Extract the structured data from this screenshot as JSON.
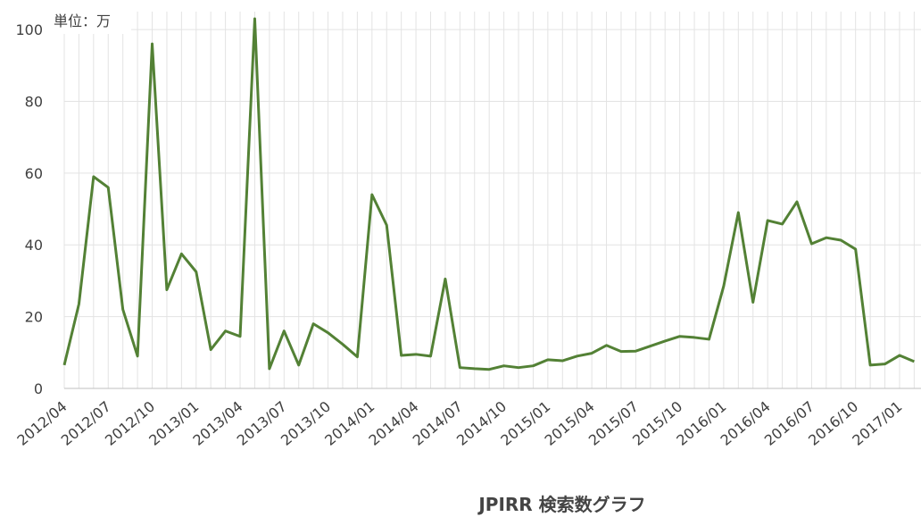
{
  "chart_data": {
    "type": "line",
    "title": "JPIRR 検索数グラフ",
    "annotation": "単位：万",
    "categories": [
      "2012/04",
      null,
      null,
      "2012/07",
      null,
      null,
      "2012/10",
      null,
      null,
      "2013/01",
      null,
      null,
      "2013/04",
      null,
      null,
      "2013/07",
      null,
      null,
      "2013/10",
      null,
      null,
      "2014/01",
      null,
      null,
      "2014/04",
      null,
      null,
      "2014/07",
      null,
      null,
      "2014/10",
      null,
      null,
      "2015/01",
      null,
      null,
      "2015/04",
      null,
      null,
      "2015/07",
      null,
      null,
      "2015/10",
      null,
      null,
      "2016/01",
      null,
      null,
      "2016/04",
      null,
      null,
      "2016/07",
      null,
      null,
      "2016/10",
      null,
      null,
      "2017/01",
      null
    ],
    "series": [
      {
        "color": "#538135",
        "values": [
          6.5,
          23.5,
          59,
          56,
          22,
          9,
          96,
          27.5,
          37.5,
          32.5,
          10.8,
          16,
          14.5,
          103,
          5.5,
          16,
          6.5,
          18,
          15.5,
          12.3,
          8.8,
          54,
          45.5,
          9.2,
          9.5,
          9,
          30.5,
          5.8,
          5.5,
          5.3,
          6.3,
          5.8,
          6.3,
          8,
          7.7,
          9,
          9.8,
          12,
          10.3,
          10.4,
          11.8,
          13.2,
          14.5,
          14.2,
          13.7,
          28.5,
          49,
          24,
          46.8,
          45.8,
          52,
          40.3,
          42,
          41.3,
          38.8,
          6.5,
          6.8,
          9.2,
          7.5
        ]
      }
    ],
    "ylim": [
      0,
      105
    ],
    "yticks": [
      0,
      20,
      40,
      60,
      80,
      100
    ],
    "grid": true
  }
}
